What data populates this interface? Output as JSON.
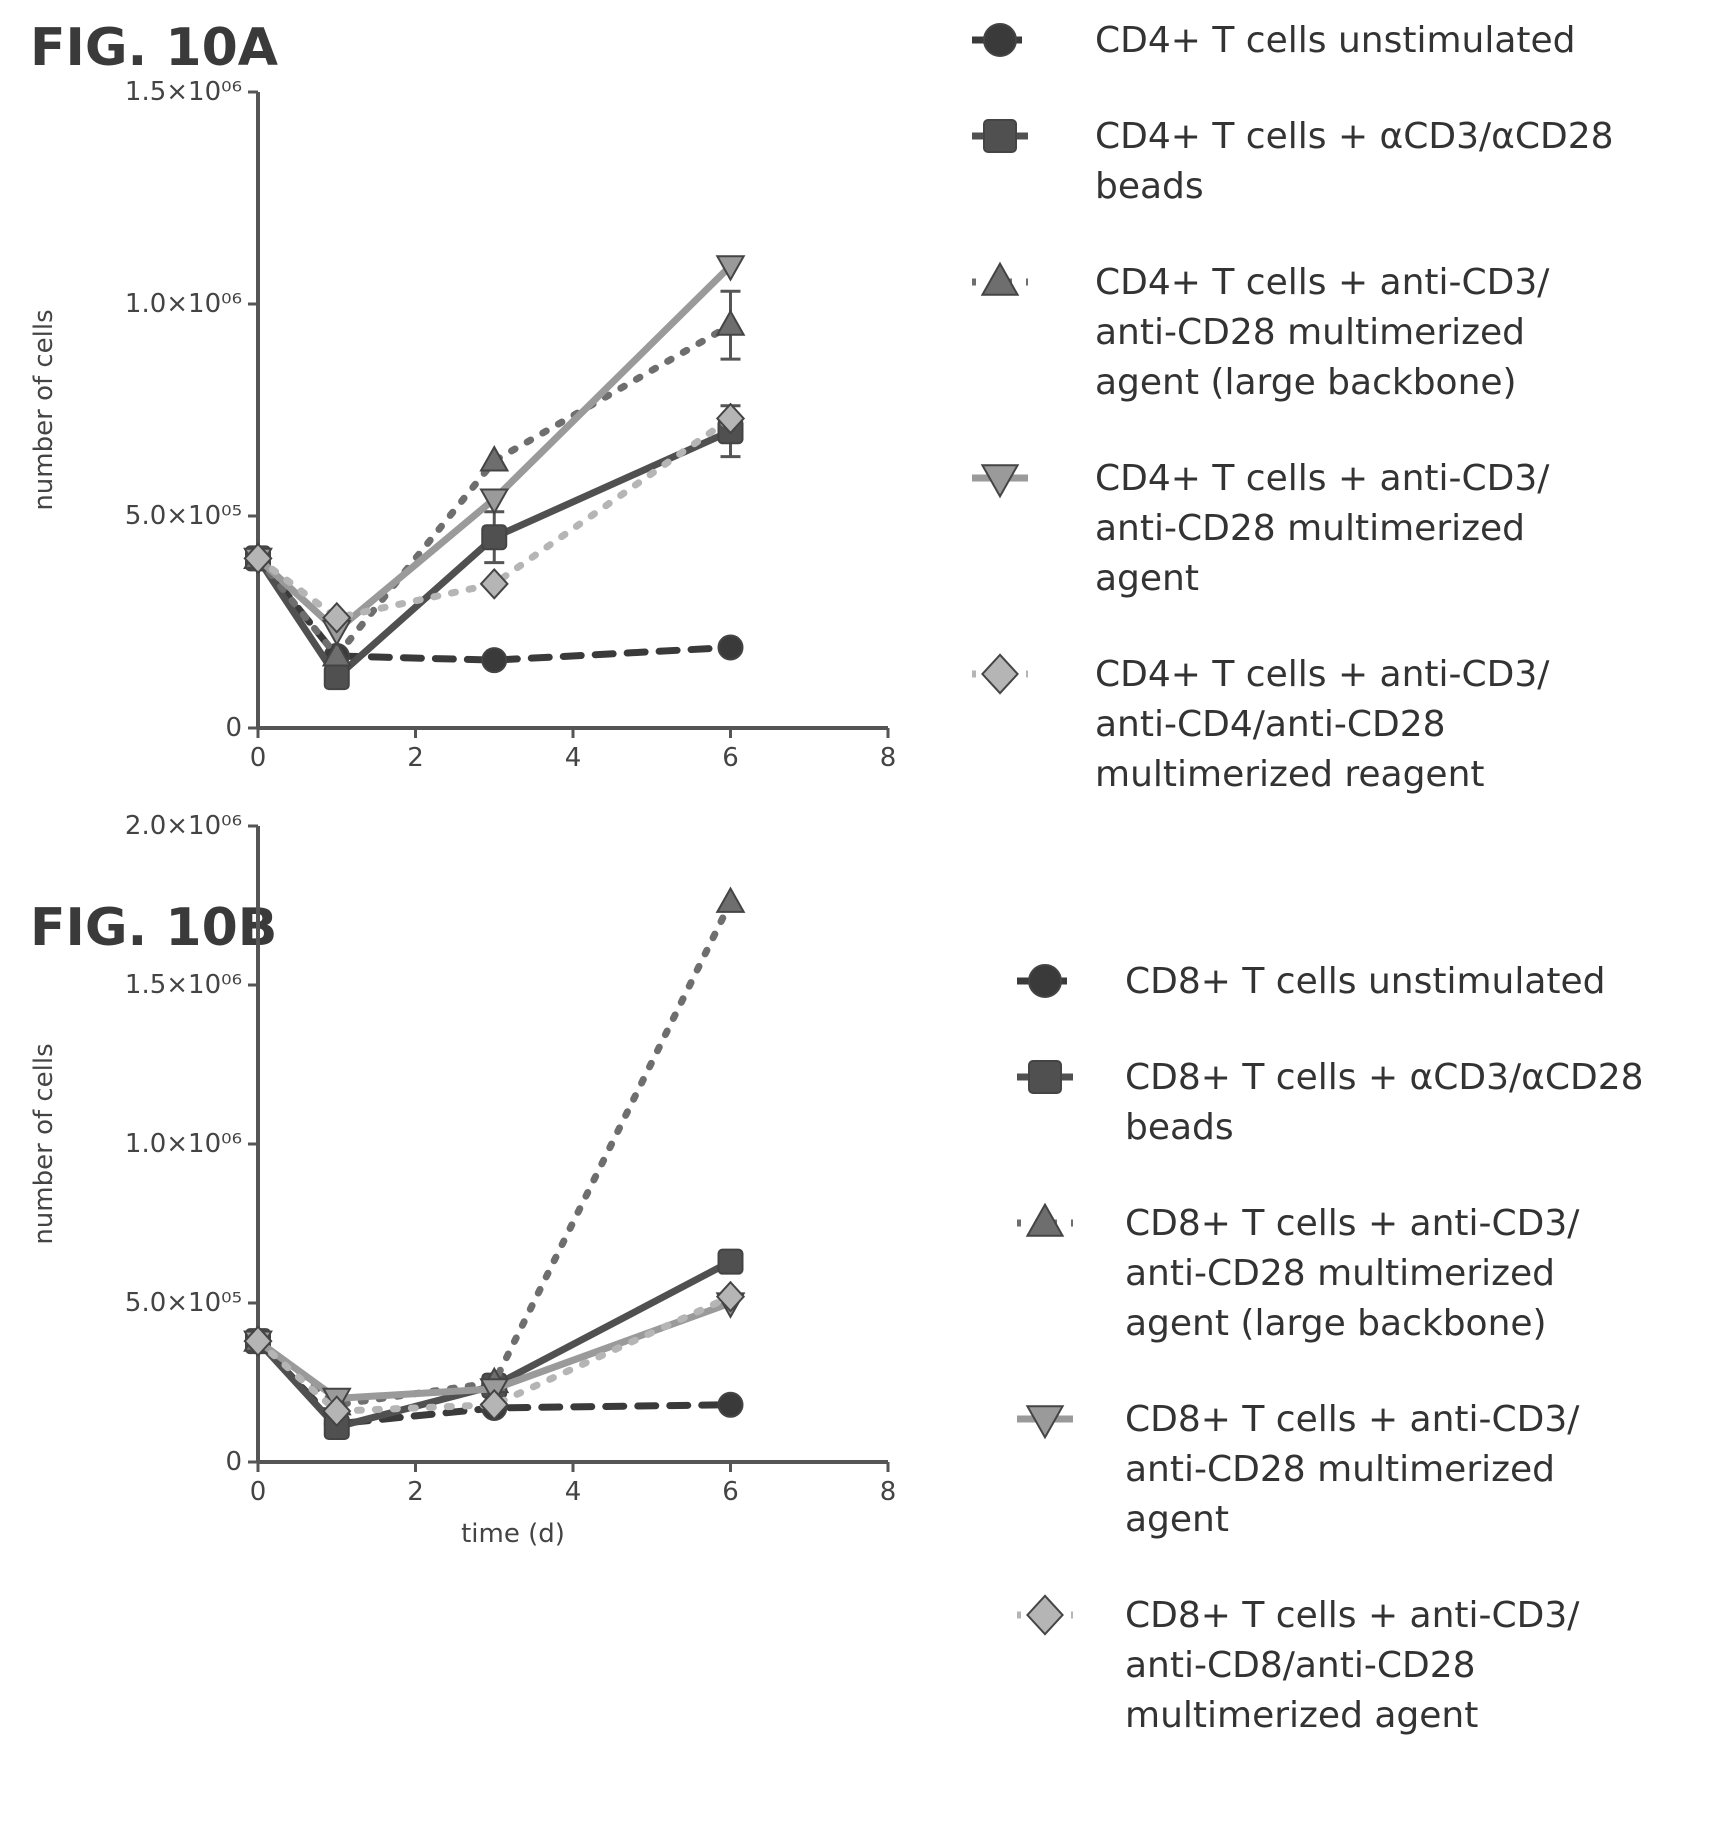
{
  "figures": [
    {
      "title": "FIG. 10A"
    },
    {
      "title": "FIG. 10B"
    }
  ],
  "chart_data": [
    {
      "type": "line",
      "title": "FIG. 10A",
      "xlabel": "",
      "ylabel": "number of cells",
      "xlim": [
        0,
        8
      ],
      "ylim": [
        0,
        1500000
      ],
      "x_ticks": [
        0,
        2,
        4,
        6,
        8
      ],
      "y_ticks": [
        0,
        500000,
        1000000,
        1500000
      ],
      "x_tick_labels": [
        "0",
        "2",
        "4",
        "6",
        "8"
      ],
      "y_tick_labels": [
        "0",
        "5.0×10⁰⁵",
        "1.0×10⁰⁶",
        "1.5×10⁰⁶"
      ],
      "grid": false,
      "legend_position": "right",
      "series": [
        {
          "name": "CD4+ T cells unstimulated",
          "x": [
            0,
            1,
            3,
            6
          ],
          "y": [
            400000,
            170000,
            160000,
            190000
          ],
          "marker": "circle",
          "color": "#3a3a3a",
          "dash": "18 14"
        },
        {
          "name": "CD4+ T cells + αCD3/αCD28 beads",
          "x": [
            0,
            1,
            3,
            6
          ],
          "y": [
            400000,
            120000,
            450000,
            700000
          ],
          "err": [
            0,
            0,
            60000,
            60000
          ],
          "marker": "square",
          "color": "#505050",
          "dash": ""
        },
        {
          "name": "CD4+ T cells + anti-CD3/ anti-CD28 multimerized agent (large backbone)",
          "x": [
            0,
            1,
            3,
            6
          ],
          "y": [
            400000,
            170000,
            630000,
            950000
          ],
          "err": [
            0,
            0,
            0,
            80000
          ],
          "marker": "triangle",
          "color": "#6e6e6e",
          "dash": "4 14"
        },
        {
          "name": "CD4+ T cells + anti-CD3/ anti-CD28 multimerized agent",
          "x": [
            0,
            1,
            3,
            6
          ],
          "y": [
            400000,
            230000,
            540000,
            1090000
          ],
          "marker": "triangle-down",
          "color": "#9a9a9a",
          "dash": ""
        },
        {
          "name": "CD4+ T cells + anti-CD3/ anti-CD4/anti-CD28 multimerized reagent",
          "x": [
            0,
            1,
            3,
            6
          ],
          "y": [
            400000,
            260000,
            340000,
            730000
          ],
          "marker": "diamond",
          "color": "#b5b5b5",
          "dash": "4 14"
        }
      ]
    },
    {
      "type": "line",
      "title": "FIG. 10B",
      "xlabel": "time (d)",
      "ylabel": "number of cells",
      "xlim": [
        0,
        8
      ],
      "ylim": [
        0,
        2000000
      ],
      "x_ticks": [
        0,
        2,
        4,
        6,
        8
      ],
      "y_ticks": [
        0,
        500000,
        1000000,
        1500000,
        2000000
      ],
      "x_tick_labels": [
        "0",
        "2",
        "4",
        "6",
        "8"
      ],
      "y_tick_labels": [
        "0",
        "5.0×10⁰⁵",
        "1.0×10⁰⁶",
        "1.5×10⁰⁶",
        "2.0×10⁰⁶"
      ],
      "grid": false,
      "legend_position": "right",
      "series": [
        {
          "name": "CD8+ T cells unstimulated",
          "x": [
            0,
            1,
            3,
            6
          ],
          "y": [
            380000,
            120000,
            170000,
            180000
          ],
          "marker": "circle",
          "color": "#3a3a3a",
          "dash": "18 14"
        },
        {
          "name": "CD8+ T cells + αCD3/αCD28 beads",
          "x": [
            0,
            1,
            3,
            6
          ],
          "y": [
            380000,
            110000,
            240000,
            630000
          ],
          "marker": "square",
          "color": "#505050",
          "dash": ""
        },
        {
          "name": "CD8+ T cells + anti-CD3/ anti-CD28 multimerized agent (large backbone)",
          "x": [
            0,
            1,
            3,
            6
          ],
          "y": [
            380000,
            180000,
            250000,
            1760000
          ],
          "marker": "triangle",
          "color": "#6e6e6e",
          "dash": "4 14"
        },
        {
          "name": "CD8+ T cells + anti-CD3/ anti-CD28 multimerized agent",
          "x": [
            0,
            1,
            3,
            6
          ],
          "y": [
            380000,
            200000,
            230000,
            500000
          ],
          "marker": "triangle-down",
          "color": "#9a9a9a",
          "dash": ""
        },
        {
          "name": "CD8+ T cells + anti-CD3/ anti-CD8/anti-CD28 multimerized agent",
          "x": [
            0,
            1,
            3,
            6
          ],
          "y": [
            380000,
            160000,
            180000,
            520000
          ],
          "marker": "diamond",
          "color": "#b5b5b5",
          "dash": "4 14"
        }
      ]
    }
  ],
  "legends": [
    {
      "items": [
        {
          "lines": [
            "CD4+ T cells unstimulated"
          ]
        },
        {
          "lines": [
            "CD4+ T cells + αCD3/αCD28",
            "beads"
          ]
        },
        {
          "lines": [
            "CD4+ T cells + anti-CD3/",
            "anti-CD28 multimerized",
            "agent (large backbone)"
          ]
        },
        {
          "lines": [
            "CD4+ T cells + anti-CD3/",
            "anti-CD28 multimerized",
            "agent"
          ]
        },
        {
          "lines": [
            "CD4+ T cells + anti-CD3/",
            "anti-CD4/anti-CD28",
            "multimerized reagent"
          ]
        }
      ]
    },
    {
      "items": [
        {
          "lines": [
            "CD8+ T cells unstimulated"
          ]
        },
        {
          "lines": [
            "CD8+ T cells + αCD3/αCD28",
            "beads"
          ]
        },
        {
          "lines": [
            "CD8+ T cells + anti-CD3/",
            "anti-CD28 multimerized",
            "agent (large backbone)"
          ]
        },
        {
          "lines": [
            "CD8+ T cells + anti-CD3/",
            "anti-CD28 multimerized",
            "agent"
          ]
        },
        {
          "lines": [
            "CD8+ T cells + anti-CD3/",
            "anti-CD8/anti-CD28",
            "multimerized agent"
          ]
        }
      ]
    }
  ]
}
